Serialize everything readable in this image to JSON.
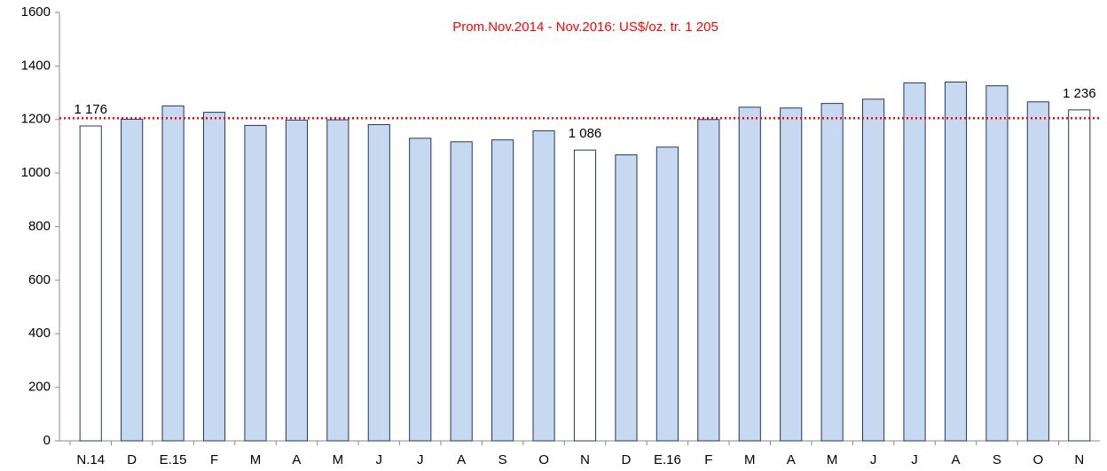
{
  "chart_data": {
    "type": "bar",
    "categories": [
      "N.14",
      "D",
      "E.15",
      "F",
      "M",
      "A",
      "M",
      "J",
      "J",
      "A",
      "S",
      "O",
      "N",
      "D",
      "E.16",
      "F",
      "M",
      "A",
      "M",
      "J",
      "J",
      "A",
      "S",
      "O",
      "N"
    ],
    "values": [
      1176,
      1201,
      1251,
      1227,
      1178,
      1198,
      1199,
      1181,
      1130,
      1117,
      1124,
      1158,
      1086,
      1068,
      1097,
      1200,
      1246,
      1243,
      1260,
      1276,
      1337,
      1340,
      1326,
      1266,
      1236
    ],
    "value_labels": [
      "1 176",
      null,
      null,
      null,
      null,
      null,
      null,
      null,
      null,
      null,
      null,
      null,
      "1 086",
      null,
      null,
      null,
      null,
      null,
      null,
      null,
      null,
      null,
      null,
      null,
      "1 236"
    ],
    "colors": [
      "#ffffff",
      "#c6d9f1",
      "#c6d9f1",
      "#c6d9f1",
      "#c6d9f1",
      "#c6d9f1",
      "#c6d9f1",
      "#c6d9f1",
      "#c6d9f1",
      "#c6d9f1",
      "#c6d9f1",
      "#c6d9f1",
      "#ffffff",
      "#c6d9f1",
      "#c6d9f1",
      "#c6d9f1",
      "#c6d9f1",
      "#c6d9f1",
      "#c6d9f1",
      "#c6d9f1",
      "#c6d9f1",
      "#c6d9f1",
      "#c6d9f1",
      "#c6d9f1",
      "#ffffff"
    ],
    "edge_color": "#1f3864",
    "ylim": [
      0,
      1600
    ],
    "yticks": [
      0,
      200,
      400,
      600,
      800,
      1000,
      1200,
      1400,
      1600
    ],
    "grid": false,
    "reference_line": {
      "value": 1205,
      "label": "Prom.Nov.2014 - Nov.2016: US$/oz. tr. 1 205",
      "color": "#ff0000"
    }
  }
}
